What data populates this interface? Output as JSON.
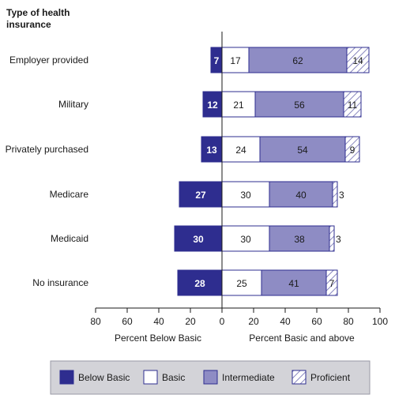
{
  "chart_data": {
    "type": "bar",
    "stacked": "diverging",
    "row_header": "Type of health insurance",
    "categories": [
      "Employer provided",
      "Military",
      "Privately purchased",
      "Medicare",
      "Medicaid",
      "No insurance"
    ],
    "series": [
      {
        "name": "Below Basic",
        "values": [
          7,
          12,
          13,
          27,
          30,
          28
        ],
        "color": "#2e2d8f",
        "side": "left"
      },
      {
        "name": "Basic",
        "values": [
          17,
          21,
          24,
          30,
          30,
          25
        ],
        "color": "#ffffff",
        "side": "right"
      },
      {
        "name": "Intermediate",
        "values": [
          62,
          56,
          54,
          40,
          38,
          41
        ],
        "color": "#8e8cc4",
        "side": "right"
      },
      {
        "name": "Proficient",
        "values": [
          14,
          11,
          9,
          3,
          3,
          7
        ],
        "color": "hatched",
        "side": "right"
      }
    ],
    "left_axis": {
      "title": "Percent Below Basic",
      "ticks": [
        "80",
        "60",
        "40",
        "20",
        "0"
      ],
      "range": [
        80,
        0
      ]
    },
    "right_axis": {
      "title": "Percent Basic and above",
      "ticks": [
        "0",
        "20",
        "40",
        "60",
        "80",
        "100"
      ],
      "range": [
        0,
        100
      ]
    },
    "legend": {
      "position": "bottom"
    }
  },
  "colors": {
    "below_basic": "#2e2d8f",
    "intermediate": "#8e8cc4",
    "outline": "#2e2d8f",
    "hatch": "#6d6bb0",
    "legend_bg": "#d3d3d8"
  }
}
